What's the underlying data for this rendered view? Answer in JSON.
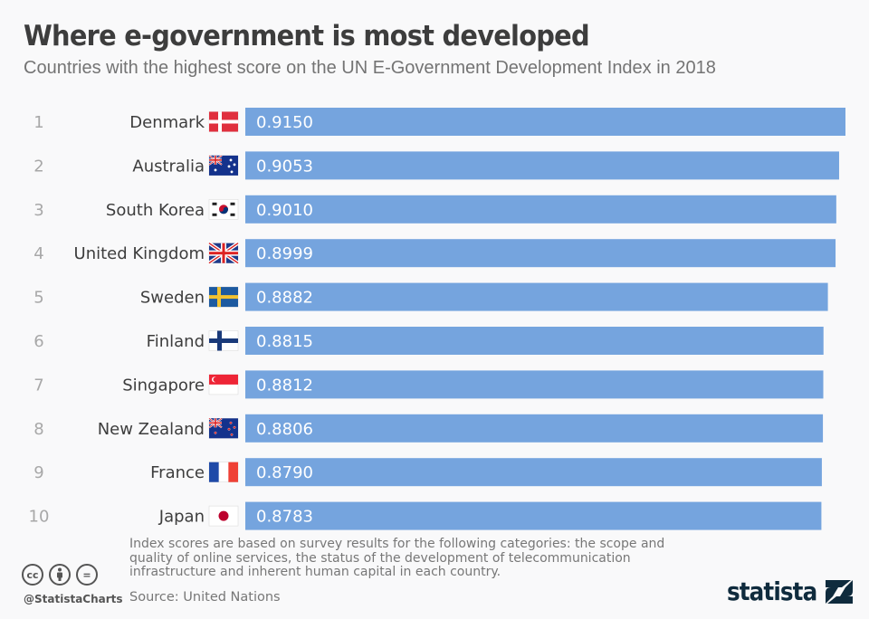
{
  "header": {
    "title": "Where e-government is most developed",
    "subtitle": "Countries with the highest score on the UN E-Government Development Index in 2018"
  },
  "chart_data": {
    "type": "bar",
    "orientation": "horizontal",
    "title": "Where e-government is most developed",
    "subtitle": "Countries with the highest score on the UN E-Government Development Index in 2018",
    "xlabel": "",
    "ylabel": "",
    "bar_color": "#75a4de",
    "value_label_color": "#ffffff",
    "grid": false,
    "xlim": [
      0,
      0.915
    ],
    "ranks": [
      "1",
      "2",
      "3",
      "4",
      "5",
      "6",
      "7",
      "8",
      "9",
      "10"
    ],
    "categories": [
      "Denmark",
      "Australia",
      "South Korea",
      "United Kingdom",
      "Sweden",
      "Finland",
      "Singapore",
      "New Zealand",
      "France",
      "Japan"
    ],
    "flags": [
      "denmark-flag",
      "australia-flag",
      "south-korea-flag",
      "united-kingdom-flag",
      "sweden-flag",
      "finland-flag",
      "singapore-flag",
      "new-zealand-flag",
      "france-flag",
      "japan-flag"
    ],
    "values": [
      0.915,
      0.9053,
      0.901,
      0.8999,
      0.8882,
      0.8815,
      0.8812,
      0.8806,
      0.879,
      0.8783
    ],
    "value_labels": [
      "0.9150",
      "0.9053",
      "0.9010",
      "0.8999",
      "0.8882",
      "0.8815",
      "0.8812",
      "0.8806",
      "0.8790",
      "0.8783"
    ]
  },
  "footer": {
    "note": "Index scores are based on survey results for the following categories: the scope and quality of online services, the status of the development of telecommunication infrastructure and inherent human capital in each country.",
    "source": "Source: United Nations",
    "handle": "@StatistaCharts",
    "license_icons": [
      "cc-icon",
      "attribution-icon",
      "no-derivatives-icon"
    ],
    "cc_label": "cc",
    "nd_label": "=",
    "brand": "statista"
  }
}
